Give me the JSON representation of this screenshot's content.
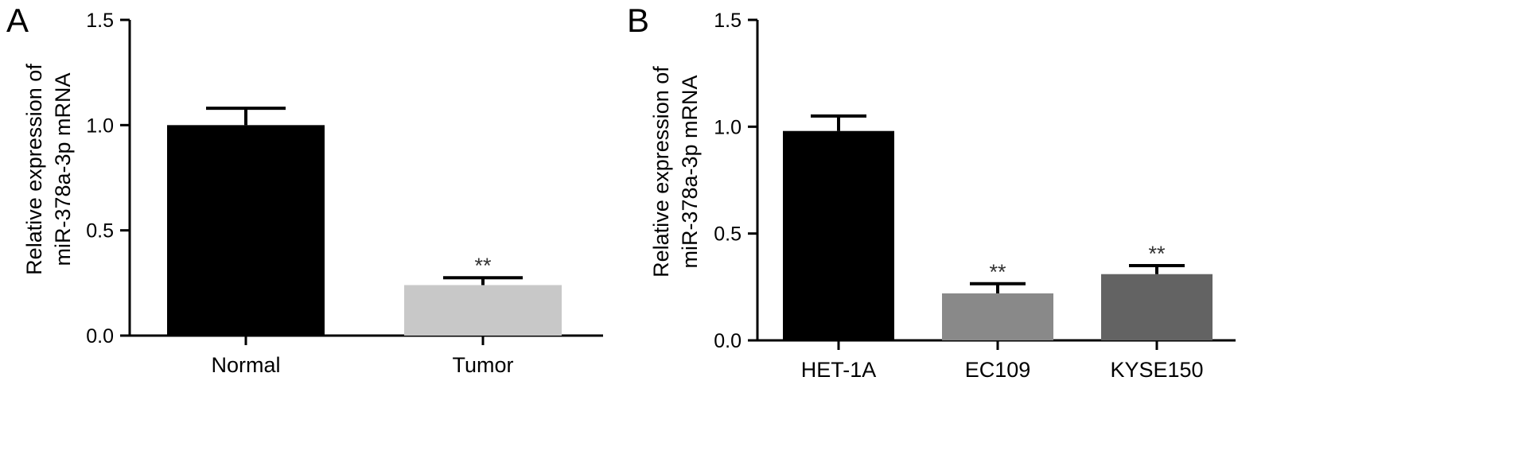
{
  "chart_data": [
    {
      "panel": "A",
      "type": "bar",
      "categories": [
        "Normal",
        "Tumor"
      ],
      "values": [
        1.0,
        0.24
      ],
      "errors": [
        0.08,
        0.035
      ],
      "significance": [
        "",
        "**"
      ],
      "colors": [
        "#000000",
        "#c8c8c8"
      ],
      "ylabel": [
        "Relative expression of",
        "miR-378a-3p mRNA"
      ],
      "ylim": [
        0,
        1.5
      ],
      "yticks": [
        "0.0",
        "0.5",
        "1.0",
        "1.5"
      ],
      "grid": false,
      "legend": "none"
    },
    {
      "panel": "B",
      "type": "bar",
      "categories": [
        "HET-1A",
        "EC109",
        "KYSE150"
      ],
      "values": [
        0.98,
        0.22,
        0.31
      ],
      "errors": [
        0.07,
        0.045,
        0.04
      ],
      "significance": [
        "",
        "**",
        "**"
      ],
      "colors": [
        "#000000",
        "#898989",
        "#636363"
      ],
      "ylabel": [
        "Relative expression of",
        "miR-378a-3p mRNA"
      ],
      "ylim": [
        0,
        1.5
      ],
      "yticks": [
        "0.0",
        "0.5",
        "1.0",
        "1.5"
      ],
      "grid": false,
      "legend": "none"
    }
  ]
}
